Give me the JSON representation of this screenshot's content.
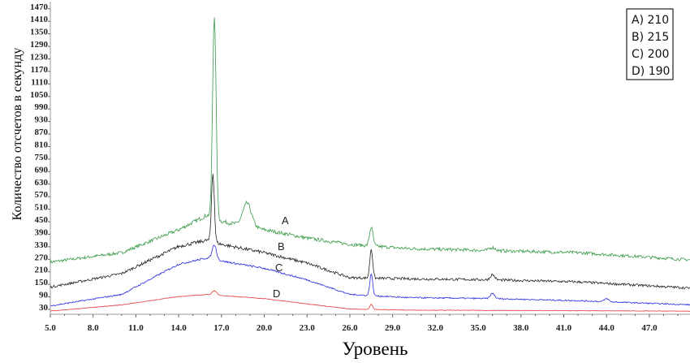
{
  "chart_data": {
    "type": "line",
    "title": "",
    "xlabel": "Уровень",
    "ylabel": "Количество отсчетов в секунду",
    "xlim": [
      5.0,
      50.0
    ],
    "ylim": [
      0,
      1500
    ],
    "x_ticks": [
      "5.0",
      "8.0",
      "11.0",
      "14.0",
      "17.0",
      "20.0",
      "23.0",
      "26.0",
      "29.0",
      "32.0",
      "35.0",
      "38.0",
      "41.0",
      "44.0",
      "47.0"
    ],
    "y_ticks": [
      "30",
      "90",
      "150",
      "210",
      "270",
      "330",
      "390",
      "450",
      "510",
      "570",
      "630",
      "690",
      "750",
      "810",
      "870",
      "930",
      "990",
      "1050",
      "1110",
      "1170",
      "1230",
      "1290",
      "1350",
      "1410",
      "1470"
    ],
    "grid": false,
    "legend_position": "top-right",
    "legend": [
      "A) 210",
      "B) 215",
      "C) 200",
      "D) 190"
    ],
    "series": [
      {
        "name": "A",
        "label": "A",
        "color": "#3a9a48",
        "baseline": [
          [
            5,
            245
          ],
          [
            10,
            290
          ],
          [
            14,
            400
          ],
          [
            16,
            470
          ],
          [
            17,
            440
          ],
          [
            20,
            400
          ],
          [
            23,
            360
          ],
          [
            26,
            330
          ],
          [
            30,
            310
          ],
          [
            36,
            300
          ],
          [
            42,
            290
          ],
          [
            50,
            255
          ]
        ],
        "peaks": [
          [
            16.5,
            980,
            0.12
          ],
          [
            18.8,
            110,
            0.3
          ],
          [
            27.5,
            90,
            0.12
          ],
          [
            36,
            15,
            0.2
          ]
        ]
      },
      {
        "name": "B",
        "label": "B",
        "color": "#222222",
        "baseline": [
          [
            5,
            125
          ],
          [
            10,
            190
          ],
          [
            14,
            320
          ],
          [
            16,
            350
          ],
          [
            17,
            330
          ],
          [
            20,
            290
          ],
          [
            23,
            240
          ],
          [
            26,
            170
          ],
          [
            30,
            165
          ],
          [
            36,
            160
          ],
          [
            42,
            150
          ],
          [
            50,
            120
          ]
        ],
        "peaks": [
          [
            16.4,
            330,
            0.1
          ],
          [
            27.5,
            140,
            0.1
          ],
          [
            36,
            25,
            0.15
          ]
        ]
      },
      {
        "name": "C",
        "label": "C",
        "color": "#2a2ae0",
        "baseline": [
          [
            5,
            35
          ],
          [
            10,
            90
          ],
          [
            14,
            235
          ],
          [
            16,
            265
          ],
          [
            17,
            250
          ],
          [
            20,
            215
          ],
          [
            23,
            160
          ],
          [
            26,
            90
          ],
          [
            30,
            75
          ],
          [
            36,
            70
          ],
          [
            42,
            60
          ],
          [
            50,
            40
          ]
        ],
        "peaks": [
          [
            16.5,
            70,
            0.15
          ],
          [
            27.5,
            105,
            0.1
          ],
          [
            36,
            25,
            0.15
          ],
          [
            44,
            15,
            0.15
          ]
        ]
      },
      {
        "name": "D",
        "label": "D",
        "color": "#e03a3a",
        "baseline": [
          [
            5,
            10
          ],
          [
            10,
            40
          ],
          [
            14,
            80
          ],
          [
            16,
            90
          ],
          [
            17,
            85
          ],
          [
            20,
            70
          ],
          [
            23,
            45
          ],
          [
            26,
            20
          ],
          [
            30,
            15
          ],
          [
            50,
            10
          ]
        ],
        "peaks": [
          [
            16.5,
            20,
            0.15
          ],
          [
            27.5,
            25,
            0.1
          ]
        ]
      }
    ]
  }
}
